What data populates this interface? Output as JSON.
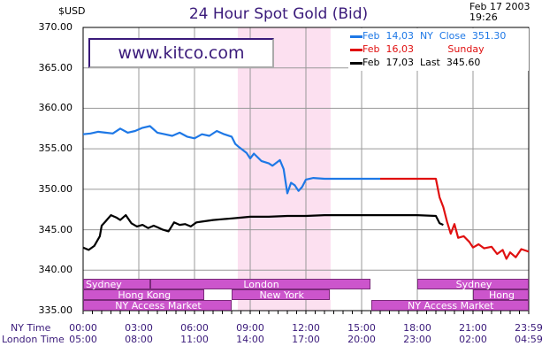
{
  "title": "24 Hour Spot Gold (Bid)",
  "unit_label": "$USD",
  "timestamp": {
    "date": "Feb  17  2003",
    "time": "19:26"
  },
  "watermark": "www.kitco.com",
  "colors": {
    "feb14": "#1e78e6",
    "feb16": "#e01010",
    "feb17": "#000000",
    "axis_text": "#3a1a7a",
    "highlight": "#fce0f0",
    "session": "#cc55cc"
  },
  "legend": [
    {
      "label": "Feb  14,03  NY  Close  351.30",
      "color": "#1e78e6",
      "text_color": "#1e78e6"
    },
    {
      "label": "Feb  16,03           Sunday",
      "color": "#e01010",
      "text_color": "#e01010"
    },
    {
      "label": "Feb  17,03  Last  345.60",
      "color": "#000000",
      "text_color": "#000000"
    }
  ],
  "axis_rows": {
    "ny": "NY Time",
    "london": "London Time"
  },
  "sessions": [
    {
      "name": "Sydney",
      "start": 0,
      "end": 3.6,
      "row": 0
    },
    {
      "name": "London",
      "start": 3.6,
      "end": 15.5,
      "row": 0,
      "center": true
    },
    {
      "name": "Sydney",
      "start": 18.0,
      "end": 24.0,
      "row": 0,
      "center": true
    },
    {
      "name": "Hong Kong",
      "start": 0,
      "end": 6.5,
      "row": 1,
      "center": true
    },
    {
      "name": "New York",
      "start": 8.0,
      "end": 13.3,
      "row": 1,
      "center": true
    },
    {
      "name": "Hong Kong",
      "start": 21.0,
      "end": 24.0,
      "row": 1,
      "center": true
    },
    {
      "name": "NY Access Market",
      "start": 0,
      "end": 8.0,
      "row": 2,
      "center": true
    },
    {
      "name": "NY Access Market",
      "start": 15.5,
      "end": 24.0,
      "row": 2,
      "center": true
    }
  ],
  "chart_data": {
    "type": "line",
    "title": "24 Hour Spot Gold (Bid)",
    "ylabel": "$USD",
    "ylim": [
      335,
      370
    ],
    "xlim": [
      0,
      24
    ],
    "yticks": [
      "370.00",
      "365.00",
      "360.00",
      "355.00",
      "350.00",
      "345.00",
      "340.00",
      "335.00"
    ],
    "ytick_values": [
      370,
      365,
      360,
      355,
      350,
      345,
      340,
      335
    ],
    "xticks_ny": [
      "00:00",
      "03:00",
      "06:00",
      "09:00",
      "12:00",
      "15:00",
      "18:00",
      "21:00",
      "23:59"
    ],
    "xticks_london": [
      "05:00",
      "08:00",
      "11:00",
      "14:00",
      "17:00",
      "20:00",
      "23:00",
      "02:00",
      "04:59"
    ],
    "xtick_positions": [
      0,
      3,
      6,
      9,
      12,
      15,
      18,
      21,
      24
    ],
    "highlight_range": [
      8.33,
      13.33
    ],
    "series": [
      {
        "name": "Feb 14,03",
        "color": "#1e78e6",
        "x": [
          0,
          0.4,
          0.8,
          1.2,
          1.6,
          2,
          2.4,
          2.8,
          3.2,
          3.6,
          4,
          4.4,
          4.8,
          5.2,
          5.6,
          6,
          6.4,
          6.8,
          7.2,
          7.6,
          8,
          8.2,
          8.4,
          8.8,
          9.0,
          9.2,
          9.6,
          10.0,
          10.2,
          10.6,
          10.8,
          11.0,
          11.2,
          11.4,
          11.6,
          11.8,
          12.0,
          12.4,
          13,
          14,
          15,
          16
        ],
        "y": [
          356.8,
          356.9,
          357.1,
          357.0,
          356.9,
          357.5,
          357.0,
          357.2,
          357.6,
          357.8,
          357.0,
          356.8,
          356.6,
          357.0,
          356.5,
          356.3,
          356.8,
          356.6,
          357.2,
          356.8,
          356.5,
          355.6,
          355.2,
          354.5,
          353.8,
          354.4,
          353.5,
          353.2,
          352.9,
          353.6,
          352.5,
          349.5,
          350.8,
          350.5,
          349.8,
          350.3,
          351.2,
          351.4,
          351.3,
          351.3,
          351.3,
          351.3
        ]
      },
      {
        "name": "Feb 16,03",
        "color": "#e01010",
        "x": [
          16,
          17,
          18,
          19,
          19.2,
          19.4,
          19.6,
          19.8,
          20.0,
          20.2,
          20.5,
          20.8,
          21.0,
          21.3,
          21.6,
          22.0,
          22.3,
          22.6,
          22.8,
          23.0,
          23.3,
          23.6,
          24.0
        ],
        "y": [
          351.3,
          351.3,
          351.3,
          351.3,
          349.0,
          347.8,
          346.0,
          344.5,
          345.7,
          344.0,
          344.2,
          343.5,
          342.8,
          343.2,
          342.7,
          342.9,
          342.0,
          342.5,
          341.4,
          342.2,
          341.6,
          342.6,
          342.3
        ]
      },
      {
        "name": "Feb 17,03",
        "color": "#000000",
        "x": [
          0,
          0.3,
          0.6,
          0.9,
          1.0,
          1.2,
          1.5,
          1.8,
          2.0,
          2.3,
          2.6,
          2.9,
          3.2,
          3.5,
          3.8,
          4.0,
          4.3,
          4.6,
          4.9,
          5.2,
          5.5,
          5.8,
          6.1,
          6.4,
          6.7,
          7.0,
          7.5,
          8.0,
          8.5,
          9,
          10,
          11,
          12,
          13,
          14,
          15,
          16,
          17,
          18,
          19,
          19.2,
          19.4
        ],
        "y": [
          342.8,
          342.5,
          343.0,
          344.2,
          345.5,
          346.0,
          346.8,
          346.5,
          346.2,
          346.8,
          345.8,
          345.4,
          345.6,
          345.2,
          345.5,
          345.3,
          345.0,
          344.8,
          345.9,
          345.6,
          345.7,
          345.4,
          345.9,
          346.0,
          346.1,
          346.2,
          346.3,
          346.4,
          346.5,
          346.6,
          346.6,
          346.7,
          346.7,
          346.8,
          346.8,
          346.8,
          346.8,
          346.8,
          346.8,
          346.7,
          345.8,
          345.6
        ]
      }
    ]
  }
}
